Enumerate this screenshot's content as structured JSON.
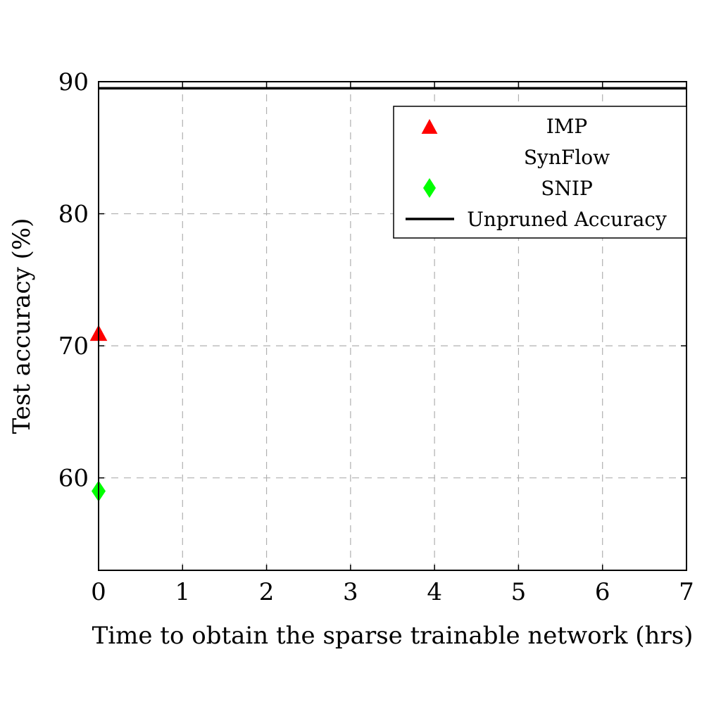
{
  "chart_data": {
    "type": "scatter",
    "xlabel": "Time to obtain the sparse trainable network (hrs)",
    "ylabel": "Test accuracy (%)",
    "xlim": [
      0,
      7
    ],
    "ylim": [
      53,
      90
    ],
    "xticks": [
      0,
      1,
      2,
      3,
      4,
      5,
      6,
      7
    ],
    "yticks": [
      60,
      70,
      80,
      90
    ],
    "grid": true,
    "legend_position": "top-right",
    "series": [
      {
        "name": "IMP",
        "marker": "triangle",
        "color": "#ff0000",
        "points": [
          {
            "x": 0,
            "y": 71
          }
        ]
      },
      {
        "name": "SynFlow",
        "marker": "none",
        "color": "#000000",
        "points": []
      },
      {
        "name": "SNIP",
        "marker": "diamond",
        "color": "#00ff00",
        "points": [
          {
            "x": 0,
            "y": 59
          }
        ]
      },
      {
        "name": "Unpruned Accuracy",
        "marker": "line",
        "color": "#000000",
        "y": 89.5
      }
    ]
  }
}
